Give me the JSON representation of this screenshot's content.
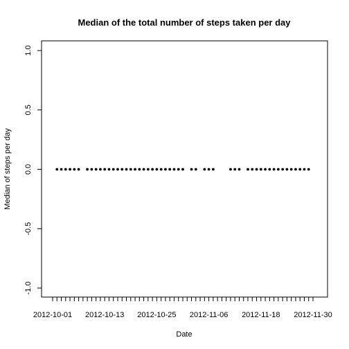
{
  "chart_data": {
    "type": "scatter",
    "title": "Median of the total number of steps taken per day",
    "xlabel": "Date",
    "ylabel": "Median of steps per day",
    "x_range": [
      "2012-10-01",
      "2012-11-30"
    ],
    "ylim": [
      -1.0,
      1.0
    ],
    "yticks": [
      -1.0,
      -0.5,
      0.0,
      0.5,
      1.0
    ],
    "ytick_labels": [
      "-1.0",
      "-0.5",
      "0.0",
      "0.5",
      "1.0"
    ],
    "xtick_labels": [
      "2012-10-01",
      "2012-10-13",
      "2012-10-25",
      "2012-11-06",
      "2012-11-18",
      "2012-11-30"
    ],
    "minor_ticks": "daily",
    "grid": false,
    "series": [
      {
        "x": [
          "2012-10-02",
          "2012-10-03",
          "2012-10-04",
          "2012-10-05",
          "2012-10-06",
          "2012-10-07",
          "2012-10-09",
          "2012-10-10",
          "2012-10-11",
          "2012-10-12",
          "2012-10-13",
          "2012-10-14",
          "2012-10-15",
          "2012-10-16",
          "2012-10-17",
          "2012-10-18",
          "2012-10-19",
          "2012-10-20",
          "2012-10-21",
          "2012-10-22",
          "2012-10-23",
          "2012-10-24",
          "2012-10-25",
          "2012-10-26",
          "2012-10-27",
          "2012-10-28",
          "2012-10-29",
          "2012-10-30",
          "2012-10-31",
          "2012-11-02",
          "2012-11-03",
          "2012-11-05",
          "2012-11-06",
          "2012-11-07",
          "2012-11-11",
          "2012-11-12",
          "2012-11-13",
          "2012-11-15",
          "2012-11-16",
          "2012-11-17",
          "2012-11-18",
          "2012-11-19",
          "2012-11-20",
          "2012-11-21",
          "2012-11-22",
          "2012-11-23",
          "2012-11-24",
          "2012-11-25",
          "2012-11-26",
          "2012-11-27",
          "2012-11-28",
          "2012-11-29"
        ],
        "y": [
          0,
          0,
          0,
          0,
          0,
          0,
          0,
          0,
          0,
          0,
          0,
          0,
          0,
          0,
          0,
          0,
          0,
          0,
          0,
          0,
          0,
          0,
          0,
          0,
          0,
          0,
          0,
          0,
          0,
          0,
          0,
          0,
          0,
          0,
          0,
          0,
          0,
          0,
          0,
          0,
          0,
          0,
          0,
          0,
          0,
          0,
          0,
          0,
          0,
          0,
          0,
          0
        ]
      }
    ],
    "colors": {
      "points": "#000000",
      "axes": "#000000",
      "background": "#ffffff"
    }
  }
}
